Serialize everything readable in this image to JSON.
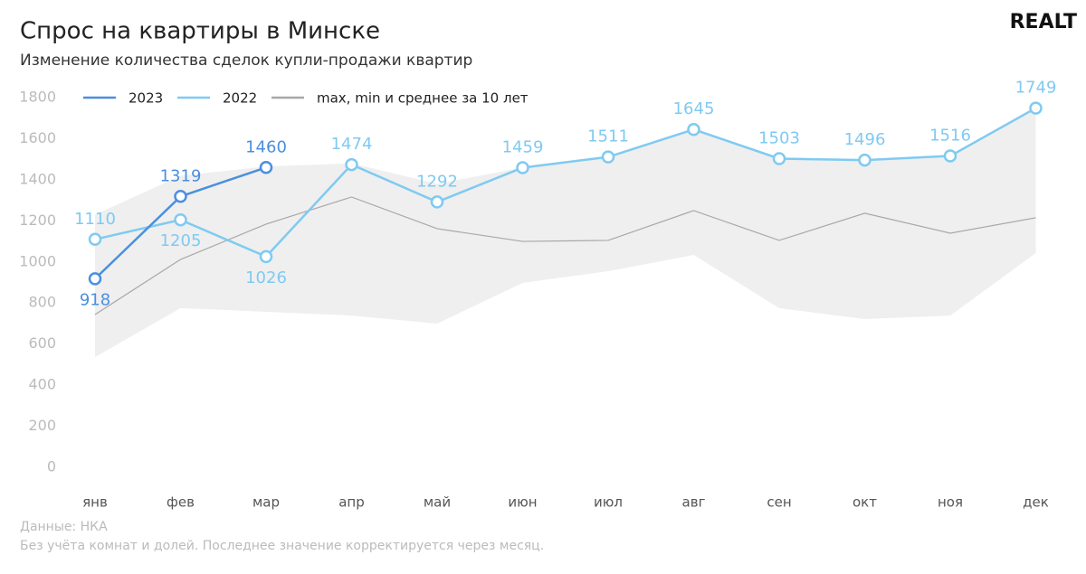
{
  "chart_data": {
    "type": "line",
    "title": "Спрос на квартиры в Минске",
    "subtitle": "Изменение количества сделок купли-продажи квартир",
    "logo": "REALT",
    "categories": [
      "янв",
      "фев",
      "мар",
      "апр",
      "май",
      "июн",
      "июл",
      "авг",
      "сен",
      "окт",
      "ноя",
      "дек"
    ],
    "series": [
      {
        "name": "2023",
        "color": "#4a8fe0",
        "values": [
          918,
          1319,
          1460,
          null,
          null,
          null,
          null,
          null,
          null,
          null,
          null,
          null
        ]
      },
      {
        "name": "2022",
        "color": "#7fcaf1",
        "values": [
          1110,
          1205,
          1026,
          1474,
          1292,
          1459,
          1511,
          1645,
          1503,
          1496,
          1516,
          1749
        ]
      }
    ],
    "band": {
      "name": "max, min и среднее за 10 лет",
      "color": "#efefef",
      "mean_color": "#a8a8a8",
      "max": [
        1230,
        1420,
        1465,
        1480,
        1380,
        1460,
        1511,
        1645,
        1503,
        1496,
        1516,
        1749
      ],
      "min": [
        537,
        775,
        757,
        739,
        700,
        898,
        955,
        1034,
        775,
        722,
        739,
        1043
      ],
      "mean": [
        744,
        1012,
        1184,
        1316,
        1162,
        1100,
        1105,
        1250,
        1105,
        1237,
        1140,
        1215
      ]
    },
    "ylim": [
      0,
      1800
    ],
    "yticks": [
      0,
      200,
      400,
      600,
      800,
      1000,
      1200,
      1400,
      1600,
      1800
    ],
    "grid": false,
    "notes": [
      "Данные: НКА",
      "Без учёта комнат и долей. Последнее значение корректируется через месяц."
    ]
  }
}
